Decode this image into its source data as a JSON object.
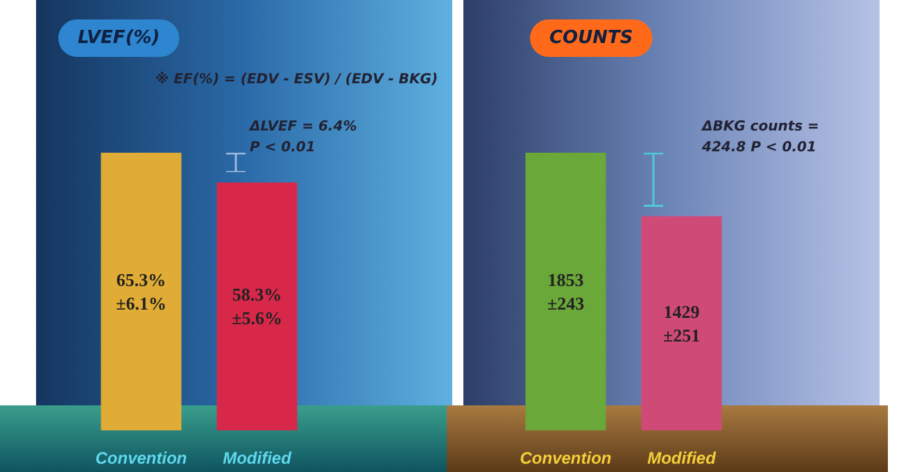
{
  "chart_data": [
    {
      "type": "bar",
      "title": "LVEF(%)",
      "categories": [
        "Convention",
        "Modified"
      ],
      "values": [
        65.3,
        58.3
      ],
      "colors": [
        "#e0ac35",
        "#d8284a"
      ],
      "value_labels": [
        "65.3%\n±6.1%",
        "58.3%\n±5.6%"
      ],
      "annotations": [
        "※ EF(%) = (EDV - ESV) / (EDV - BKG)",
        "ΔLVEF = 6.4%\nP < 0.01"
      ]
    },
    {
      "type": "bar",
      "title": "COUNTS",
      "categories": [
        "Convention",
        "Modified"
      ],
      "values": [
        1853,
        1429
      ],
      "colors": [
        "#6aa83a",
        "#d04a78"
      ],
      "value_labels": [
        "1853\n±243",
        "1429\n±251"
      ],
      "annotations": [
        "ΔBKG counts =\n424.8 P < 0.01"
      ]
    }
  ]
}
